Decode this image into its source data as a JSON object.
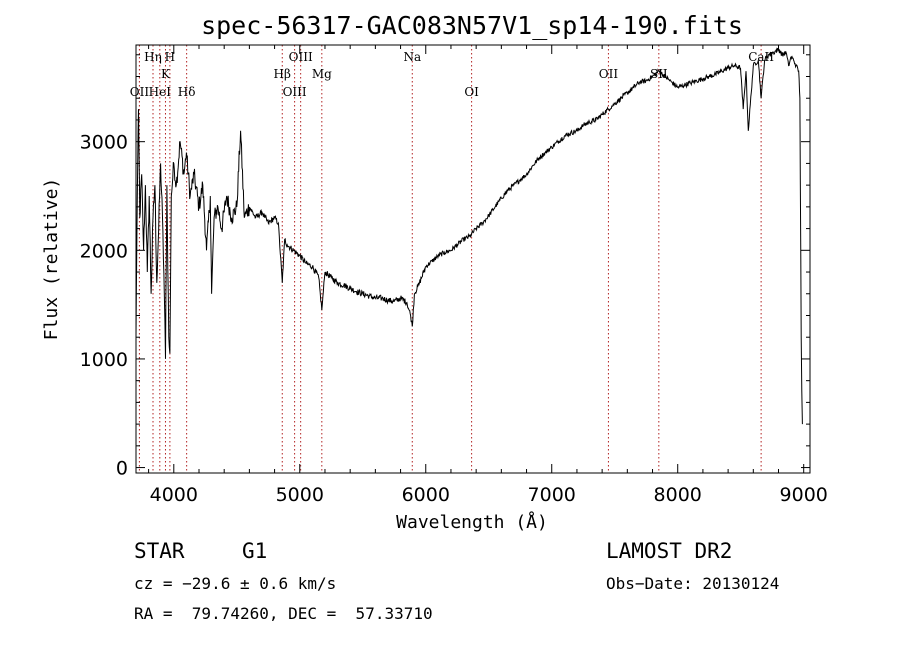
{
  "chart_data": {
    "type": "line",
    "title": "spec-56317-GAC083N57V1_sp14-190.fits",
    "xlabel": "Wavelength (Å)",
    "ylabel": "Flux (relative)",
    "xlim": [
      3700,
      9050
    ],
    "ylim": [
      -50,
      3890
    ],
    "xticks": [
      4000,
      5000,
      6000,
      7000,
      8000,
      9000
    ],
    "yticks": [
      0,
      1000,
      2000,
      3000
    ],
    "grid": false,
    "line_color": "#000000",
    "marker_color": "#b22222",
    "spectral_lines": [
      {
        "name": "OII",
        "x": 3727,
        "row": 3
      },
      {
        "name": "Hη",
        "x": 3835,
        "row": 0
      },
      {
        "name": "HeI",
        "x": 3889,
        "row": 3
      },
      {
        "name": "K",
        "x": 3934,
        "row": 1
      },
      {
        "name": "H",
        "x": 3969,
        "row": 0
      },
      {
        "name": "Hδ",
        "x": 4102,
        "row": 3
      },
      {
        "name": "Hβ",
        "x": 4861,
        "row": 2
      },
      {
        "name": "OIII",
        "x": 4959,
        "row": 3
      },
      {
        "name": "OIII",
        "x": 5007,
        "row": 0
      },
      {
        "name": "Mg",
        "x": 5175,
        "row": 2
      },
      {
        "name": "Na",
        "x": 5893,
        "row": 0
      },
      {
        "name": "OI",
        "x": 6364,
        "row": 3
      },
      {
        "name": "OII",
        "x": 7450,
        "row": 2
      },
      {
        "name": "SII",
        "x": 7850,
        "row": 2
      },
      {
        "name": "CaII",
        "x": 8662,
        "row": 0
      }
    ],
    "spectrum": {
      "x": [
        3700,
        3710,
        3720,
        3730,
        3745,
        3760,
        3775,
        3790,
        3805,
        3820,
        3835,
        3850,
        3865,
        3880,
        3895,
        3910,
        3925,
        3934,
        3945,
        3960,
        3969,
        3980,
        4000,
        4020,
        4050,
        4080,
        4100,
        4130,
        4160,
        4200,
        4230,
        4260,
        4290,
        4300,
        4320,
        4350,
        4380,
        4420,
        4460,
        4500,
        4530,
        4560,
        4600,
        4650,
        4700,
        4750,
        4800,
        4830,
        4861,
        4880,
        4900,
        4950,
        5000,
        5050,
        5100,
        5150,
        5175,
        5200,
        5250,
        5300,
        5350,
        5400,
        5450,
        5500,
        5550,
        5600,
        5650,
        5700,
        5750,
        5800,
        5850,
        5880,
        5893,
        5910,
        5950,
        6000,
        6050,
        6100,
        6150,
        6200,
        6250,
        6300,
        6350,
        6400,
        6450,
        6500,
        6550,
        6600,
        6650,
        6700,
        6750,
        6800,
        6850,
        6900,
        6950,
        7000,
        7050,
        7100,
        7150,
        7200,
        7250,
        7300,
        7350,
        7400,
        7450,
        7500,
        7550,
        7600,
        7650,
        7700,
        7750,
        7800,
        7850,
        7900,
        7950,
        8000,
        8050,
        8100,
        8150,
        8200,
        8250,
        8300,
        8350,
        8400,
        8450,
        8498,
        8520,
        8542,
        8560,
        8600,
        8640,
        8662,
        8690,
        8720,
        8760,
        8800,
        8830,
        8860,
        8880,
        8900,
        8920,
        8940,
        8960,
        8970,
        8980,
        8985,
        8990
      ],
      "y": [
        1200,
        2500,
        3300,
        2300,
        2700,
        2000,
        2600,
        1800,
        2500,
        1600,
        2300,
        2600,
        1700,
        2200,
        2800,
        2300,
        1600,
        1000,
        2600,
        1200,
        1050,
        2500,
        2800,
        2600,
        3000,
        2700,
        2900,
        2500,
        2700,
        2400,
        2600,
        2000,
        2500,
        1600,
        2300,
        2400,
        2200,
        2500,
        2300,
        2400,
        3100,
        2300,
        2400,
        2300,
        2350,
        2250,
        2300,
        2250,
        1700,
        2100,
        2050,
        2000,
        1950,
        1880,
        1850,
        1750,
        1450,
        1800,
        1750,
        1700,
        1680,
        1650,
        1620,
        1600,
        1580,
        1560,
        1560,
        1540,
        1530,
        1560,
        1520,
        1400,
        1300,
        1600,
        1700,
        1850,
        1900,
        1950,
        1980,
        2000,
        2050,
        2100,
        2130,
        2200,
        2250,
        2320,
        2400,
        2480,
        2550,
        2600,
        2650,
        2700,
        2780,
        2850,
        2900,
        2950,
        3000,
        3050,
        3080,
        3100,
        3150,
        3180,
        3200,
        3250,
        3300,
        3350,
        3400,
        3450,
        3500,
        3550,
        3560,
        3600,
        3650,
        3600,
        3550,
        3500,
        3520,
        3540,
        3560,
        3580,
        3600,
        3620,
        3650,
        3680,
        3700,
        3680,
        3300,
        3650,
        3100,
        3700,
        3750,
        3400,
        3750,
        3800,
        3820,
        3850,
        3800,
        3820,
        3700,
        3780,
        3750,
        3700,
        3650,
        3400,
        1200,
        700,
        400
      ]
    }
  },
  "info": {
    "object_class": "STAR",
    "subclass": "G1",
    "redshift_text": "cz = −29.6 ± 0.6 km/s",
    "coords_text": "RA =  79.74260, DEC =  57.33710",
    "survey": "LAMOST DR2",
    "obs_date": "Obs−Date: 20130124"
  }
}
